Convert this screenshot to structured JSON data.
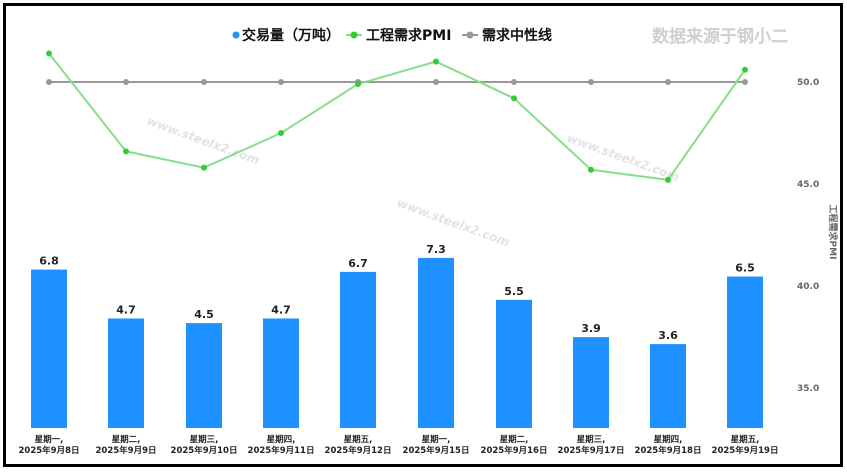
{
  "chart_data": {
    "type": "bar+line",
    "categories": [
      "星期一,\n2025年9月8日",
      "星期二,\n2025年9月9日",
      "星期三,\n2025年9月10日",
      "星期四,\n2025年9月11日",
      "星期五,\n2025年9月12日",
      "星期一,\n2025年9月15日",
      "星期二,\n2025年9月16日",
      "星期三,\n2025年9月17日",
      "星期四,\n2025年9月18日",
      "星期五,\n2025年9月19日"
    ],
    "series": [
      {
        "name": "交易量（万吨）",
        "type": "bar",
        "axis": "left",
        "color": "#1e90ff",
        "values": [
          6.8,
          4.7,
          4.5,
          4.7,
          6.7,
          7.3,
          5.5,
          3.9,
          3.6,
          6.5
        ]
      },
      {
        "name": "工程需求PMI",
        "type": "line",
        "axis": "right",
        "color": "#33cc33",
        "values": [
          51.4,
          46.6,
          45.8,
          47.5,
          49.9,
          51.0,
          49.2,
          45.7,
          45.2,
          50.6
        ]
      },
      {
        "name": "需求中性线",
        "type": "line",
        "axis": "right",
        "color": "#999999",
        "values": [
          50,
          50,
          50,
          50,
          50,
          50,
          50,
          50,
          50,
          50
        ]
      }
    ],
    "y2label": "工程需求PMI",
    "y2ticks": [
      "50.0",
      "45.0",
      "40.0",
      "35.0"
    ],
    "y2lim": [
      33,
      52.8
    ],
    "legend_position": "top",
    "source_note": "数据来源于钢小二",
    "watermark": "www.steelx2.com"
  }
}
